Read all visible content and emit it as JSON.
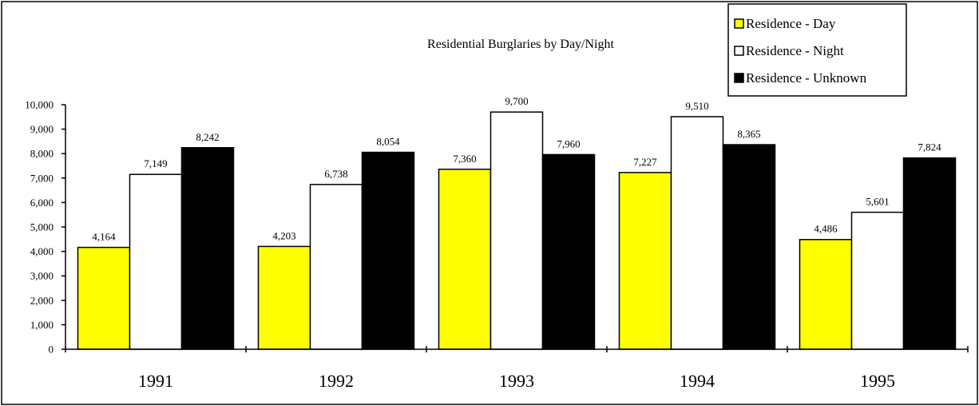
{
  "chart_data": {
    "type": "bar",
    "title": "Residential Burglaries by Day/Night",
    "xlabel": "",
    "ylabel": "",
    "categories": [
      "1991",
      "1992",
      "1993",
      "1994",
      "1995"
    ],
    "series": [
      {
        "name": "Residence - Day",
        "color": "#ffff00",
        "values": [
          4164,
          4203,
          7360,
          7227,
          4486
        ]
      },
      {
        "name": "Residence - Night",
        "color": "#ffffff",
        "values": [
          7149,
          6738,
          9700,
          9510,
          5601
        ]
      },
      {
        "name": "Residence - Unknown",
        "color": "#000000",
        "values": [
          8242,
          8054,
          7960,
          8365,
          7824
        ]
      }
    ],
    "ylim": [
      0,
      10000
    ],
    "yticks": [
      "0",
      "1,000",
      "2,000",
      "3,000",
      "4,000",
      "5,000",
      "6,000",
      "7,000",
      "8,000",
      "9,000",
      "10,000"
    ],
    "data_labels": [
      [
        "4,164",
        "4,203",
        "7,360",
        "7,227",
        "4,486"
      ],
      [
        "7,149",
        "6,738",
        "9,700",
        "9,510",
        "5,601"
      ],
      [
        "8,242",
        "8,054",
        "7,960",
        "8,365",
        "7,824"
      ]
    ],
    "grid": false,
    "legend_position": "top-right"
  }
}
